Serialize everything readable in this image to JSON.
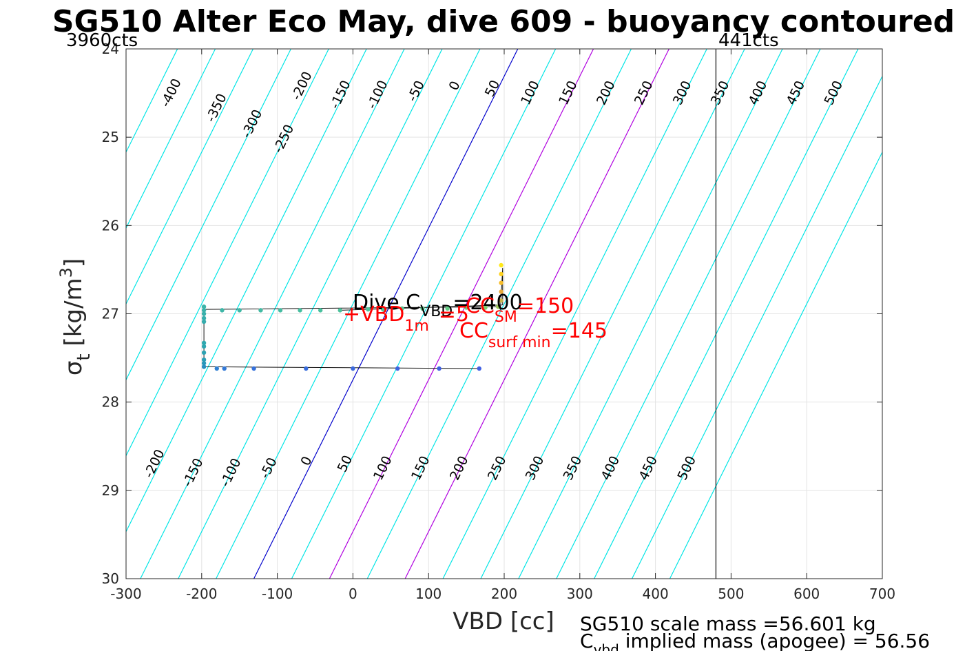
{
  "chart_data": {
    "type": "line",
    "title": "SG510 Alter Eco May, dive 609 - buoyancy contoured",
    "xlabel": "VBD [cc]",
    "ylabel": {
      "main": "σ",
      "sub": "t",
      "unit_pre": "[kg/m",
      "unit_sup": "3",
      "unit_post": "]"
    },
    "xlim": [
      -300,
      700
    ],
    "ylim": [
      24,
      30
    ],
    "y_reversed": true,
    "grid": true,
    "xticks": [
      -300,
      -200,
      -100,
      0,
      100,
      200,
      300,
      400,
      500,
      600,
      700
    ],
    "xtick_labels": [
      "-300",
      "-200",
      "-100",
      "0",
      "100",
      "200",
      "300",
      "400",
      "500",
      "600",
      "700"
    ],
    "yticks": [
      24,
      25,
      26,
      27,
      28,
      29,
      30
    ],
    "ytick_labels": [
      "24",
      "25",
      "26",
      "27",
      "28",
      "29",
      "30"
    ],
    "contours": {
      "color": "#00e5e5",
      "zero_color": "#0000cc",
      "highlight_color": "#b000e0",
      "levels": [
        -450,
        -400,
        -350,
        -300,
        -250,
        -200,
        -150,
        -100,
        -50,
        0,
        50,
        100,
        150,
        200,
        250,
        300,
        350,
        400,
        450,
        500,
        550
      ],
      "top_labels": [
        {
          "text": "-400",
          "x": -240,
          "y": 24.5
        },
        {
          "text": "-350",
          "x": -180,
          "y": 24.67
        },
        {
          "text": "-300",
          "x": -133,
          "y": 24.85
        },
        {
          "text": "-250",
          "x": -91,
          "y": 25.02
        },
        {
          "text": "-200",
          "x": -67,
          "y": 24.42
        },
        {
          "text": "-150",
          "x": -16,
          "y": 24.52
        },
        {
          "text": "-100",
          "x": 33,
          "y": 24.52
        },
        {
          "text": "-50",
          "x": 84,
          "y": 24.48
        },
        {
          "text": "0",
          "x": 135,
          "y": 24.42
        },
        {
          "text": "50",
          "x": 185,
          "y": 24.45
        },
        {
          "text": "100",
          "x": 235,
          "y": 24.5
        },
        {
          "text": "150",
          "x": 285,
          "y": 24.5
        },
        {
          "text": "200",
          "x": 335,
          "y": 24.5
        },
        {
          "text": "250",
          "x": 385,
          "y": 24.5
        },
        {
          "text": "300",
          "x": 436,
          "y": 24.5
        },
        {
          "text": "350",
          "x": 486,
          "y": 24.5
        },
        {
          "text": "400",
          "x": 536,
          "y": 24.5
        },
        {
          "text": "450",
          "x": 586,
          "y": 24.5
        },
        {
          "text": "500",
          "x": 636,
          "y": 24.5
        }
      ],
      "bottom_labels": [
        {
          "text": "-200",
          "x": -262,
          "y": 28.7
        },
        {
          "text": "-150",
          "x": -211,
          "y": 28.8
        },
        {
          "text": "-100",
          "x": -161,
          "y": 28.8
        },
        {
          "text": "-50",
          "x": -111,
          "y": 28.75
        },
        {
          "text": "0",
          "x": -61,
          "y": 28.67
        },
        {
          "text": "50",
          "x": -10,
          "y": 28.7
        },
        {
          "text": "100",
          "x": 40,
          "y": 28.75
        },
        {
          "text": "150",
          "x": 90,
          "y": 28.75
        },
        {
          "text": "200",
          "x": 141,
          "y": 28.75
        },
        {
          "text": "250",
          "x": 191,
          "y": 28.75
        },
        {
          "text": "300",
          "x": 241,
          "y": 28.75
        },
        {
          "text": "350",
          "x": 291,
          "y": 28.75
        },
        {
          "text": "400",
          "x": 341,
          "y": 28.75
        },
        {
          "text": "450",
          "x": 391,
          "y": 28.75
        },
        {
          "text": "500",
          "x": 442,
          "y": 28.75
        }
      ]
    },
    "vertical_line": {
      "x": 480,
      "color": "#000000"
    },
    "corner_labels": {
      "left": "3960cts",
      "right": "441cts"
    },
    "dive_trace": {
      "x": [
        -17,
        198,
        198,
        195,
        192,
        -197,
        -197,
        -197,
        -197,
        -197,
        -197,
        -196,
        167
      ],
      "y": [
        26.96,
        26.9,
        26.48,
        26.95,
        26.92,
        26.95,
        27.0,
        27.06,
        27.35,
        27.4,
        27.5,
        27.6,
        27.62
      ]
    },
    "points": [
      {
        "x": 196,
        "y": 26.45,
        "color": "#ffe81a"
      },
      {
        "x": 196,
        "y": 26.55,
        "color": "#ffd21f"
      },
      {
        "x": 196,
        "y": 26.65,
        "color": "#f7bd2b"
      },
      {
        "x": 196,
        "y": 26.75,
        "color": "#e8a83a"
      },
      {
        "x": 196,
        "y": 26.85,
        "color": "#c8b24e"
      },
      {
        "x": 192,
        "y": 26.92,
        "color": "#9cc85c"
      },
      {
        "x": 175,
        "y": 26.93,
        "color": "#7ed06a"
      },
      {
        "x": 150,
        "y": 26.93,
        "color": "#6fd07a"
      },
      {
        "x": 125,
        "y": 26.94,
        "color": "#64cc84"
      },
      {
        "x": 92,
        "y": 26.94,
        "color": "#5cc88c"
      },
      {
        "x": 65,
        "y": 26.94,
        "color": "#57c692"
      },
      {
        "x": 40,
        "y": 26.95,
        "color": "#52c596"
      },
      {
        "x": 20,
        "y": 26.95,
        "color": "#4fc49a"
      },
      {
        "x": -17,
        "y": 26.96,
        "color": "#4cc29c"
      },
      {
        "x": -43,
        "y": 26.96,
        "color": "#49c09e"
      },
      {
        "x": -70,
        "y": 26.96,
        "color": "#47bea0"
      },
      {
        "x": -96,
        "y": 26.96,
        "color": "#45bca2"
      },
      {
        "x": -122,
        "y": 26.96,
        "color": "#43baa3"
      },
      {
        "x": -150,
        "y": 26.96,
        "color": "#41b8a5"
      },
      {
        "x": -173,
        "y": 26.96,
        "color": "#3fb6a7"
      },
      {
        "x": -197,
        "y": 26.92,
        "color": "#3db4a9"
      },
      {
        "x": -197,
        "y": 26.96,
        "color": "#3bb2aa"
      },
      {
        "x": -197,
        "y": 27.0,
        "color": "#39b0ab"
      },
      {
        "x": -197,
        "y": 27.05,
        "color": "#37aeac"
      },
      {
        "x": -197,
        "y": 27.09,
        "color": "#35acad"
      },
      {
        "x": -197,
        "y": 27.33,
        "color": "#30a8af"
      },
      {
        "x": -197,
        "y": 27.37,
        "color": "#2ea6b0"
      },
      {
        "x": -197,
        "y": 27.44,
        "color": "#2ca2b3"
      },
      {
        "x": -197,
        "y": 27.52,
        "color": "#2a9eb6"
      },
      {
        "x": -197,
        "y": 27.56,
        "color": "#2998ba"
      },
      {
        "x": -197,
        "y": 27.6,
        "color": "#288fc0"
      },
      {
        "x": -180,
        "y": 27.62,
        "color": "#2f7fd2"
      },
      {
        "x": -170,
        "y": 27.62,
        "color": "#3278d6"
      },
      {
        "x": -131,
        "y": 27.62,
        "color": "#3570da"
      },
      {
        "x": -62,
        "y": 27.62,
        "color": "#376cdc"
      },
      {
        "x": 0,
        "y": 27.62,
        "color": "#3a68de"
      },
      {
        "x": 59,
        "y": 27.62,
        "color": "#3d64e0"
      },
      {
        "x": 114,
        "y": 27.62,
        "color": "#3f60e2"
      },
      {
        "x": 167,
        "y": 27.62,
        "color": "#4060e4"
      }
    ],
    "annotations": [
      {
        "id": "dive-cvbd",
        "main": "Dive C",
        "sub": "VBD",
        "post": "=2400",
        "color": "#000000"
      },
      {
        "id": "vbd-1m",
        "main": "+VBD",
        "sub": "1m",
        "post": "=5",
        "color": "#ff0000"
      },
      {
        "id": "cc-sm",
        "main": "CC",
        "sub": "SM",
        "post": "=150",
        "color": "#ff0000"
      },
      {
        "id": "cc-surf-min",
        "main": "CC",
        "sub": "surf min",
        "post": "=145",
        "color": "#ff0000"
      }
    ],
    "footer": {
      "line1": "SG510 scale mass =56.601 kg",
      "line2_main": "C",
      "line2_sub": "vbd",
      "line2_post": " implied mass (apogee) = 56.56"
    }
  }
}
